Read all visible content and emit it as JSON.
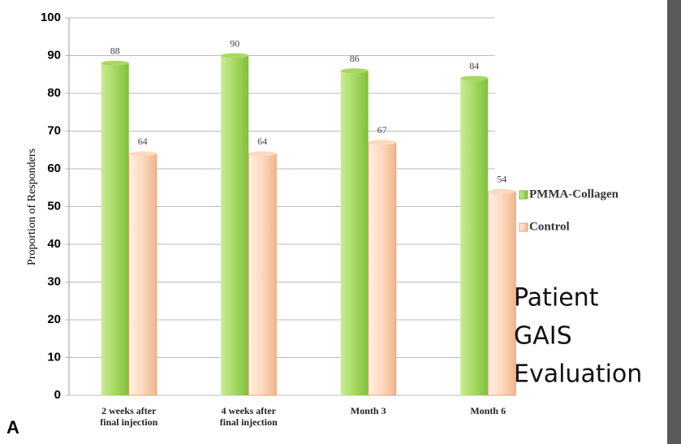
{
  "chart_data": {
    "type": "bar",
    "ylabel": "Proportion of Responders",
    "categories": [
      "2 weeks after\nfinal injection",
      "4 weeks after\nfinal injection",
      "Month 3",
      "Month 6"
    ],
    "series": [
      {
        "name": "PMMA-Collagen",
        "color": "#a6d862",
        "values": [
          88,
          90,
          86,
          84
        ]
      },
      {
        "name": "Control",
        "color": "#fcd9bf",
        "values": [
          64,
          64,
          67,
          54
        ]
      }
    ],
    "ylim": [
      0,
      100
    ],
    "yticks": [
      0,
      10,
      20,
      30,
      40,
      50,
      60,
      70,
      80,
      90,
      100
    ],
    "grid": true,
    "legend": "right",
    "annotation_lines": [
      "Patient",
      "GAIS",
      "Evaluation"
    ],
    "panel_label": "A"
  }
}
